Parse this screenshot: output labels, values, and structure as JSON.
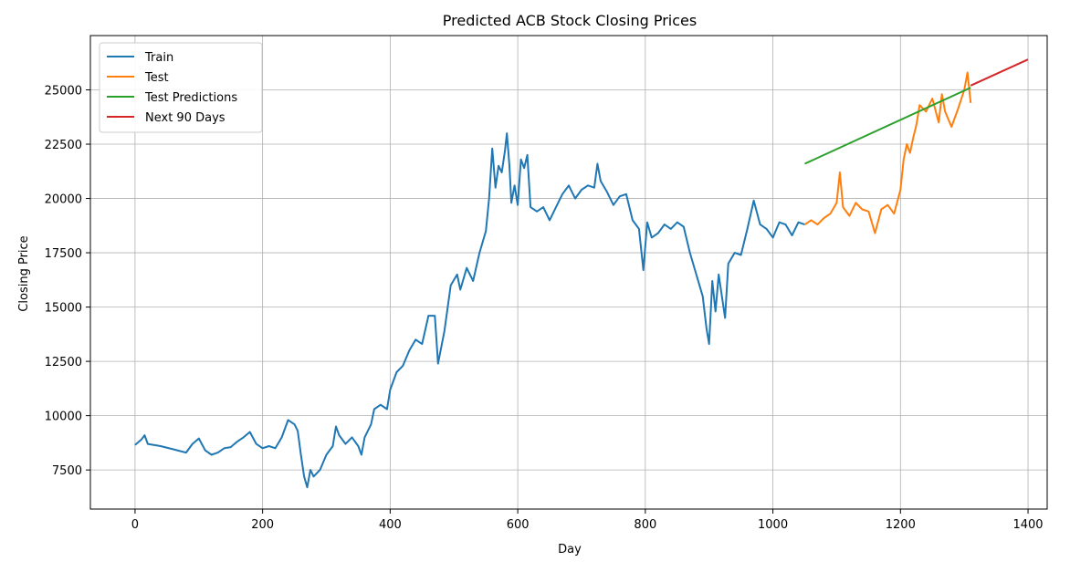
{
  "chart_data": {
    "type": "line",
    "title": "Predicted ACB Stock Closing Prices",
    "xlabel": "Day",
    "ylabel": "Closing Price",
    "xlim": [
      -70,
      1430
    ],
    "ylim": [
      5700,
      27500
    ],
    "xticks": [
      0,
      200,
      400,
      600,
      800,
      1000,
      1200,
      1400
    ],
    "yticks": [
      7500,
      10000,
      12500,
      15000,
      17500,
      20000,
      22500,
      25000
    ],
    "grid": true,
    "legend_position": "top-left",
    "series": [
      {
        "name": "Train",
        "color": "#1f77b4",
        "points": [
          [
            0,
            8650
          ],
          [
            10,
            8900
          ],
          [
            15,
            9100
          ],
          [
            20,
            8700
          ],
          [
            40,
            8600
          ],
          [
            60,
            8450
          ],
          [
            80,
            8300
          ],
          [
            90,
            8700
          ],
          [
            100,
            8950
          ],
          [
            110,
            8400
          ],
          [
            120,
            8200
          ],
          [
            130,
            8300
          ],
          [
            140,
            8500
          ],
          [
            150,
            8550
          ],
          [
            160,
            8800
          ],
          [
            170,
            9000
          ],
          [
            180,
            9250
          ],
          [
            190,
            8700
          ],
          [
            200,
            8500
          ],
          [
            210,
            8600
          ],
          [
            220,
            8500
          ],
          [
            230,
            9000
          ],
          [
            240,
            9800
          ],
          [
            250,
            9600
          ],
          [
            255,
            9300
          ],
          [
            260,
            8200
          ],
          [
            265,
            7200
          ],
          [
            270,
            6700
          ],
          [
            275,
            7500
          ],
          [
            280,
            7200
          ],
          [
            290,
            7500
          ],
          [
            300,
            8200
          ],
          [
            310,
            8600
          ],
          [
            315,
            9500
          ],
          [
            320,
            9100
          ],
          [
            330,
            8700
          ],
          [
            340,
            9000
          ],
          [
            350,
            8600
          ],
          [
            355,
            8200
          ],
          [
            360,
            9000
          ],
          [
            370,
            9600
          ],
          [
            375,
            10300
          ],
          [
            385,
            10500
          ],
          [
            395,
            10300
          ],
          [
            400,
            11200
          ],
          [
            410,
            12000
          ],
          [
            420,
            12300
          ],
          [
            430,
            13000
          ],
          [
            440,
            13500
          ],
          [
            450,
            13300
          ],
          [
            460,
            14600
          ],
          [
            470,
            14600
          ],
          [
            475,
            12400
          ],
          [
            485,
            13900
          ],
          [
            495,
            16000
          ],
          [
            505,
            16500
          ],
          [
            510,
            15800
          ],
          [
            520,
            16800
          ],
          [
            530,
            16200
          ],
          [
            540,
            17500
          ],
          [
            550,
            18500
          ],
          [
            555,
            20000
          ],
          [
            560,
            22300
          ],
          [
            565,
            20500
          ],
          [
            570,
            21500
          ],
          [
            575,
            21200
          ],
          [
            580,
            22200
          ],
          [
            583,
            23000
          ],
          [
            587,
            21500
          ],
          [
            590,
            19800
          ],
          [
            595,
            20600
          ],
          [
            600,
            19700
          ],
          [
            605,
            21800
          ],
          [
            610,
            21400
          ],
          [
            615,
            22000
          ],
          [
            620,
            19600
          ],
          [
            630,
            19400
          ],
          [
            640,
            19600
          ],
          [
            650,
            19000
          ],
          [
            660,
            19600
          ],
          [
            670,
            20200
          ],
          [
            680,
            20600
          ],
          [
            690,
            20000
          ],
          [
            700,
            20400
          ],
          [
            710,
            20600
          ],
          [
            720,
            20500
          ],
          [
            725,
            21600
          ],
          [
            730,
            20800
          ],
          [
            740,
            20300
          ],
          [
            750,
            19700
          ],
          [
            760,
            20100
          ],
          [
            770,
            20200
          ],
          [
            780,
            19000
          ],
          [
            790,
            18600
          ],
          [
            797,
            16700
          ],
          [
            803,
            18900
          ],
          [
            810,
            18200
          ],
          [
            820,
            18400
          ],
          [
            830,
            18800
          ],
          [
            840,
            18600
          ],
          [
            850,
            18900
          ],
          [
            860,
            18700
          ],
          [
            870,
            17500
          ],
          [
            880,
            16500
          ],
          [
            890,
            15500
          ],
          [
            896,
            14000
          ],
          [
            900,
            13300
          ],
          [
            905,
            16200
          ],
          [
            910,
            14800
          ],
          [
            915,
            16500
          ],
          [
            920,
            15500
          ],
          [
            925,
            14500
          ],
          [
            930,
            17000
          ],
          [
            940,
            17500
          ],
          [
            950,
            17400
          ],
          [
            960,
            18600
          ],
          [
            970,
            19900
          ],
          [
            980,
            18800
          ],
          [
            990,
            18600
          ],
          [
            1000,
            18200
          ],
          [
            1010,
            18900
          ],
          [
            1020,
            18800
          ],
          [
            1030,
            18300
          ],
          [
            1040,
            18900
          ],
          [
            1050,
            18800
          ]
        ]
      },
      {
        "name": "Test",
        "color": "#ff7f0e",
        "points": [
          [
            1050,
            18800
          ],
          [
            1060,
            19000
          ],
          [
            1070,
            18800
          ],
          [
            1080,
            19100
          ],
          [
            1090,
            19300
          ],
          [
            1100,
            19800
          ],
          [
            1105,
            21200
          ],
          [
            1110,
            19600
          ],
          [
            1120,
            19200
          ],
          [
            1130,
            19800
          ],
          [
            1140,
            19500
          ],
          [
            1150,
            19400
          ],
          [
            1160,
            18400
          ],
          [
            1170,
            19500
          ],
          [
            1180,
            19700
          ],
          [
            1190,
            19300
          ],
          [
            1200,
            20400
          ],
          [
            1205,
            21800
          ],
          [
            1210,
            22500
          ],
          [
            1215,
            22100
          ],
          [
            1220,
            22800
          ],
          [
            1225,
            23400
          ],
          [
            1230,
            24300
          ],
          [
            1240,
            24000
          ],
          [
            1250,
            24600
          ],
          [
            1260,
            23500
          ],
          [
            1265,
            24800
          ],
          [
            1270,
            24000
          ],
          [
            1280,
            23300
          ],
          [
            1290,
            24100
          ],
          [
            1300,
            25000
          ],
          [
            1305,
            25800
          ],
          [
            1310,
            24400
          ]
        ]
      },
      {
        "name": "Test Predictions",
        "color": "#2ca02c",
        "points": [
          [
            1050,
            21600
          ],
          [
            1310,
            25100
          ]
        ]
      },
      {
        "name": "Next 90 Days",
        "color": "#d62728",
        "points": [
          [
            1310,
            25200
          ],
          [
            1400,
            26400
          ]
        ]
      }
    ]
  }
}
